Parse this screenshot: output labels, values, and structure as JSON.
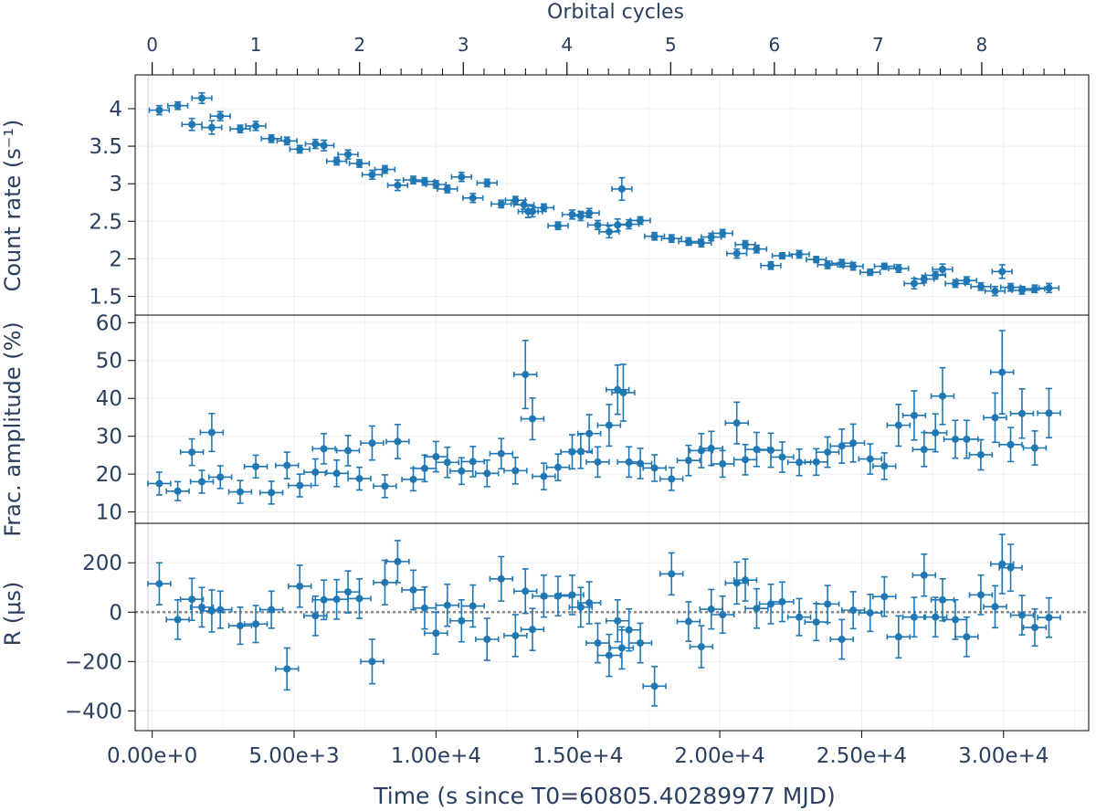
{
  "chart_data": {
    "type": "scatter",
    "title": "",
    "x_axis": {
      "label": "Time (s since T0=60805.40289977 MJD)",
      "range": [
        -600,
        33000
      ],
      "ticks": [
        0,
        5000,
        10000,
        15000,
        20000,
        25000,
        30000
      ],
      "tick_labels": [
        "0.00e+0",
        "5.00e+3",
        "1.00e+4",
        "1.50e+4",
        "2.00e+4",
        "2.50e+4",
        "3.00e+4"
      ]
    },
    "top_axis": {
      "label": "Orbital cycles",
      "cycle_seconds": 3654,
      "ticks": [
        0,
        1,
        2,
        3,
        4,
        5,
        6,
        7,
        8
      ],
      "tick_labels": [
        "0",
        "1",
        "2",
        "3",
        "4",
        "5",
        "6",
        "7",
        "8"
      ]
    },
    "panels": [
      {
        "name": "count-rate",
        "ylabel": "Count rate (s⁻¹)",
        "ylim": [
          1.25,
          4.45
        ],
        "yticks": [
          1.5,
          2,
          2.5,
          3,
          3.5,
          4
        ],
        "ytick_labels": [
          "1.5",
          "2",
          "2.5",
          "3",
          "3.5",
          "4"
        ],
        "reference_line": null,
        "xerr": 350,
        "points": [
          [
            250,
            3.98,
            0.06
          ],
          [
            900,
            4.04,
            0.05
          ],
          [
            1400,
            3.79,
            0.08
          ],
          [
            1750,
            4.14,
            0.07
          ],
          [
            2100,
            3.75,
            0.09
          ],
          [
            2400,
            3.9,
            0.06
          ],
          [
            3100,
            3.73,
            0.05
          ],
          [
            3650,
            3.77,
            0.06
          ],
          [
            4200,
            3.6,
            0.05
          ],
          [
            4750,
            3.57,
            0.05
          ],
          [
            5200,
            3.46,
            0.05
          ],
          [
            5750,
            3.53,
            0.06
          ],
          [
            6050,
            3.51,
            0.07
          ],
          [
            6500,
            3.3,
            0.05
          ],
          [
            6900,
            3.39,
            0.06
          ],
          [
            7300,
            3.27,
            0.05
          ],
          [
            7750,
            3.12,
            0.06
          ],
          [
            8200,
            3.19,
            0.05
          ],
          [
            8650,
            2.98,
            0.07
          ],
          [
            9200,
            3.05,
            0.05
          ],
          [
            9600,
            3.03,
            0.05
          ],
          [
            10000,
            2.99,
            0.05
          ],
          [
            10400,
            2.93,
            0.05
          ],
          [
            10900,
            3.09,
            0.06
          ],
          [
            11300,
            2.81,
            0.06
          ],
          [
            11800,
            3.01,
            0.05
          ],
          [
            12300,
            2.73,
            0.05
          ],
          [
            12800,
            2.78,
            0.05
          ],
          [
            13100,
            2.72,
            0.06
          ],
          [
            13250,
            2.63,
            0.08
          ],
          [
            13400,
            2.63,
            0.07
          ],
          [
            13800,
            2.68,
            0.05
          ],
          [
            14300,
            2.44,
            0.05
          ],
          [
            14800,
            2.59,
            0.06
          ],
          [
            15100,
            2.57,
            0.06
          ],
          [
            15400,
            2.61,
            0.06
          ],
          [
            15700,
            2.45,
            0.06
          ],
          [
            16100,
            2.36,
            0.08
          ],
          [
            16400,
            2.45,
            0.08
          ],
          [
            16550,
            2.93,
            0.15
          ],
          [
            16800,
            2.46,
            0.06
          ],
          [
            17200,
            2.51,
            0.05
          ],
          [
            17700,
            2.3,
            0.05
          ],
          [
            18300,
            2.27,
            0.05
          ],
          [
            18900,
            2.23,
            0.05
          ],
          [
            19350,
            2.21,
            0.05
          ],
          [
            19700,
            2.29,
            0.05
          ],
          [
            20100,
            2.34,
            0.05
          ],
          [
            20600,
            2.07,
            0.06
          ],
          [
            20900,
            2.19,
            0.05
          ],
          [
            21300,
            2.13,
            0.05
          ],
          [
            21800,
            1.91,
            0.05
          ],
          [
            22200,
            2.04,
            0.04
          ],
          [
            22800,
            2.06,
            0.05
          ],
          [
            23400,
            1.99,
            0.04
          ],
          [
            23800,
            1.92,
            0.05
          ],
          [
            24300,
            1.94,
            0.05
          ],
          [
            24700,
            1.9,
            0.05
          ],
          [
            25300,
            1.82,
            0.04
          ],
          [
            25800,
            1.9,
            0.04
          ],
          [
            26300,
            1.87,
            0.05
          ],
          [
            26850,
            1.67,
            0.07
          ],
          [
            27200,
            1.73,
            0.05
          ],
          [
            27600,
            1.78,
            0.05
          ],
          [
            27850,
            1.86,
            0.07
          ],
          [
            28300,
            1.67,
            0.05
          ],
          [
            28700,
            1.71,
            0.05
          ],
          [
            29200,
            1.63,
            0.05
          ],
          [
            29700,
            1.57,
            0.06
          ],
          [
            29950,
            1.83,
            0.09
          ],
          [
            30250,
            1.62,
            0.05
          ],
          [
            30650,
            1.58,
            0.05
          ],
          [
            31100,
            1.6,
            0.05
          ],
          [
            31600,
            1.61,
            0.06
          ]
        ]
      },
      {
        "name": "frac-amplitude",
        "ylabel": "Frac. amplitude (%)",
        "ylim": [
          7,
          62
        ],
        "yticks": [
          10,
          20,
          30,
          40,
          50,
          60
        ],
        "ytick_labels": [
          "10",
          "20",
          "30",
          "40",
          "50",
          "60"
        ],
        "reference_line": null,
        "xerr": 400,
        "points": [
          [
            250,
            17.5,
            3.0
          ],
          [
            900,
            15.5,
            2.5
          ],
          [
            1400,
            25.8,
            3.5
          ],
          [
            1750,
            18.0,
            3.0
          ],
          [
            2100,
            31.0,
            5.0
          ],
          [
            2400,
            19.2,
            3.0
          ],
          [
            3100,
            15.3,
            3.0
          ],
          [
            3650,
            22.0,
            3.0
          ],
          [
            4200,
            15.1,
            3.0
          ],
          [
            4750,
            22.3,
            3.5
          ],
          [
            5200,
            17.0,
            3.0
          ],
          [
            5750,
            20.5,
            3.5
          ],
          [
            6050,
            26.7,
            4.0
          ],
          [
            6500,
            20.2,
            3.5
          ],
          [
            6900,
            26.2,
            4.0
          ],
          [
            7300,
            18.8,
            3.0
          ],
          [
            7750,
            28.2,
            4.5
          ],
          [
            8200,
            16.8,
            3.0
          ],
          [
            8650,
            28.6,
            4.5
          ],
          [
            9200,
            18.6,
            3.0
          ],
          [
            9600,
            21.5,
            3.5
          ],
          [
            10000,
            24.6,
            4.0
          ],
          [
            10400,
            23.1,
            4.0
          ],
          [
            10900,
            20.8,
            3.5
          ],
          [
            11300,
            23.3,
            4.0
          ],
          [
            11800,
            20.2,
            3.5
          ],
          [
            12300,
            25.4,
            4.0
          ],
          [
            12800,
            20.9,
            3.5
          ],
          [
            13150,
            46.3,
            9.0
          ],
          [
            13400,
            34.6,
            5.5
          ],
          [
            13800,
            19.4,
            3.5
          ],
          [
            14300,
            21.8,
            3.5
          ],
          [
            14800,
            25.9,
            4.5
          ],
          [
            15100,
            26.0,
            4.5
          ],
          [
            15400,
            30.7,
            5.0
          ],
          [
            15700,
            23.2,
            4.0
          ],
          [
            16100,
            32.9,
            5.5
          ],
          [
            16400,
            42.3,
            6.5
          ],
          [
            16600,
            41.5,
            7.5
          ],
          [
            16800,
            23.2,
            4.0
          ],
          [
            17200,
            22.8,
            4.0
          ],
          [
            17700,
            21.6,
            3.5
          ],
          [
            18300,
            18.7,
            3.0
          ],
          [
            18900,
            23.6,
            4.0
          ],
          [
            19350,
            26.2,
            4.5
          ],
          [
            19700,
            26.8,
            4.5
          ],
          [
            20100,
            22.7,
            3.5
          ],
          [
            20600,
            33.5,
            5.5
          ],
          [
            20900,
            23.8,
            4.0
          ],
          [
            21300,
            26.5,
            4.5
          ],
          [
            21800,
            26.3,
            4.5
          ],
          [
            22200,
            24.5,
            4.0
          ],
          [
            22800,
            23.1,
            3.5
          ],
          [
            23400,
            23.2,
            3.5
          ],
          [
            23800,
            25.8,
            4.0
          ],
          [
            24300,
            27.4,
            4.5
          ],
          [
            24700,
            28.2,
            5.0
          ],
          [
            25300,
            24.0,
            4.0
          ],
          [
            25800,
            22.1,
            3.5
          ],
          [
            26300,
            32.9,
            5.5
          ],
          [
            26850,
            35.5,
            6.5
          ],
          [
            27200,
            26.5,
            4.5
          ],
          [
            27600,
            30.9,
            5.0
          ],
          [
            27850,
            40.6,
            7.5
          ],
          [
            28300,
            29.2,
            5.0
          ],
          [
            28700,
            29.2,
            5.0
          ],
          [
            29200,
            25.1,
            4.0
          ],
          [
            29700,
            34.9,
            6.5
          ],
          [
            29950,
            46.9,
            11.0
          ],
          [
            30250,
            27.8,
            4.5
          ],
          [
            30650,
            36.0,
            6.5
          ],
          [
            31100,
            26.9,
            4.5
          ],
          [
            31600,
            36.1,
            6.5
          ]
        ]
      },
      {
        "name": "r-delay",
        "ylabel": "R (μs)",
        "ylim": [
          -480,
          360
        ],
        "yticks": [
          -400,
          -200,
          0,
          200
        ],
        "ytick_labels": [
          "−400",
          "−200",
          "0",
          "200"
        ],
        "reference_line": 0,
        "xerr": 400,
        "points": [
          [
            250,
            115,
            85
          ],
          [
            900,
            -30,
            80
          ],
          [
            1400,
            52,
            85
          ],
          [
            1750,
            20,
            80
          ],
          [
            2100,
            5,
            85
          ],
          [
            2400,
            10,
            75
          ],
          [
            3100,
            -55,
            75
          ],
          [
            3650,
            -48,
            75
          ],
          [
            4200,
            10,
            75
          ],
          [
            4750,
            -230,
            85
          ],
          [
            5200,
            105,
            85
          ],
          [
            5750,
            -15,
            80
          ],
          [
            6050,
            50,
            80
          ],
          [
            6500,
            52,
            80
          ],
          [
            6900,
            82,
            85
          ],
          [
            7300,
            55,
            80
          ],
          [
            7750,
            -200,
            90
          ],
          [
            8200,
            120,
            90
          ],
          [
            8650,
            205,
            85
          ],
          [
            9200,
            90,
            80
          ],
          [
            9600,
            17,
            85
          ],
          [
            10000,
            -85,
            85
          ],
          [
            10400,
            28,
            85
          ],
          [
            10900,
            -35,
            85
          ],
          [
            11300,
            25,
            85
          ],
          [
            11800,
            -110,
            85
          ],
          [
            12300,
            135,
            90
          ],
          [
            12800,
            -95,
            85
          ],
          [
            13150,
            85,
            90
          ],
          [
            13400,
            -70,
            85
          ],
          [
            13800,
            65,
            85
          ],
          [
            14300,
            65,
            80
          ],
          [
            14800,
            70,
            80
          ],
          [
            15100,
            20,
            80
          ],
          [
            15400,
            38,
            85
          ],
          [
            15700,
            -125,
            80
          ],
          [
            16100,
            -175,
            85
          ],
          [
            16400,
            -35,
            85
          ],
          [
            16550,
            -145,
            85
          ],
          [
            16800,
            -72,
            85
          ],
          [
            17200,
            -125,
            80
          ],
          [
            17700,
            -300,
            80
          ],
          [
            18300,
            155,
            85
          ],
          [
            18900,
            -38,
            80
          ],
          [
            19350,
            -140,
            85
          ],
          [
            19700,
            12,
            80
          ],
          [
            20100,
            -10,
            75
          ],
          [
            20600,
            118,
            85
          ],
          [
            20900,
            130,
            85
          ],
          [
            21300,
            15,
            80
          ],
          [
            21800,
            33,
            80
          ],
          [
            22200,
            42,
            80
          ],
          [
            22800,
            -20,
            75
          ],
          [
            23400,
            -40,
            75
          ],
          [
            23800,
            33,
            75
          ],
          [
            24300,
            -110,
            80
          ],
          [
            24700,
            8,
            75
          ],
          [
            25300,
            -3,
            75
          ],
          [
            25800,
            63,
            80
          ],
          [
            26300,
            -100,
            85
          ],
          [
            26850,
            -20,
            80
          ],
          [
            27200,
            150,
            85
          ],
          [
            27600,
            -20,
            80
          ],
          [
            27850,
            50,
            85
          ],
          [
            28300,
            -30,
            80
          ],
          [
            28700,
            -100,
            80
          ],
          [
            29200,
            70,
            80
          ],
          [
            29700,
            22,
            85
          ],
          [
            29950,
            195,
            120
          ],
          [
            30250,
            180,
            95
          ],
          [
            30650,
            -12,
            80
          ],
          [
            31100,
            -62,
            75
          ],
          [
            31600,
            -22,
            80
          ]
        ]
      }
    ]
  },
  "colors": {
    "marker": "#1f77b4",
    "axis_text": "#2a3f5f",
    "grid": "#ebeef2",
    "frame": "#000000",
    "reference_line": "#888888"
  }
}
